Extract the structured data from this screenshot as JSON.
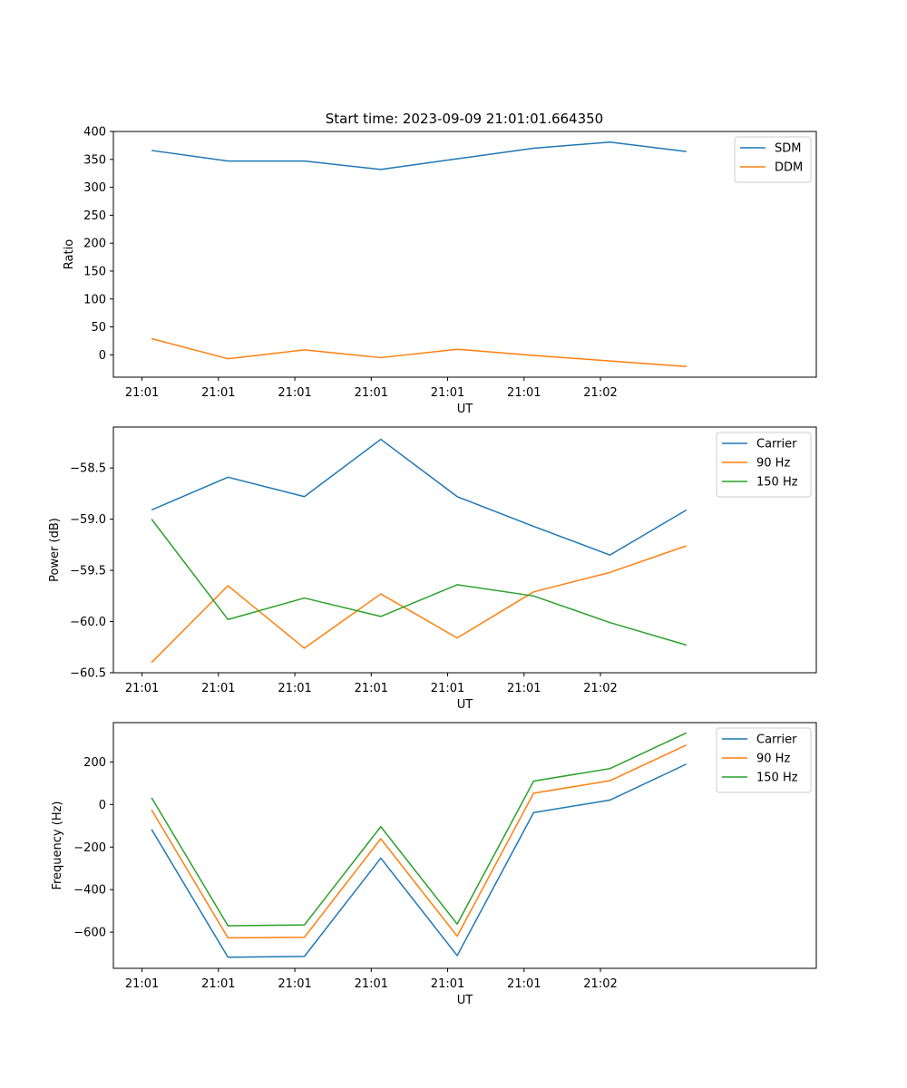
{
  "figure": {
    "title": "Start time: 2023-09-09 21:01:01.664350"
  },
  "chart_data": [
    {
      "type": "line",
      "title": "Start time: 2023-09-09 21:01:01.664350",
      "xlabel": "UT",
      "ylabel": "Ratio",
      "x_ticks": [
        "21:01",
        "21:01",
        "21:01",
        "21:01",
        "21:01",
        "21:01",
        "21:02"
      ],
      "xlim": [
        -0.5,
        8.7
      ],
      "x": [
        0,
        1,
        2,
        3,
        4,
        5,
        6,
        7
      ],
      "ylim": [
        -40,
        400
      ],
      "y_ticks": [
        0,
        50,
        100,
        150,
        200,
        250,
        300,
        350,
        400
      ],
      "y_tick_labels": [
        "0",
        "50",
        "100",
        "150",
        "200",
        "250",
        "300",
        "350",
        "400"
      ],
      "legend_position": "top-right",
      "series": [
        {
          "name": "SDM",
          "color": "#1f77b4",
          "values": [
            366,
            347,
            347,
            332,
            351,
            370,
            381,
            364
          ]
        },
        {
          "name": "DDM",
          "color": "#ff7f0e",
          "values": [
            29,
            -7,
            9,
            -5,
            10,
            -1,
            -11,
            -21
          ]
        }
      ]
    },
    {
      "type": "line",
      "title": "",
      "xlabel": "UT",
      "ylabel": "Power (dB)",
      "x_ticks": [
        "21:01",
        "21:01",
        "21:01",
        "21:01",
        "21:01",
        "21:01",
        "21:02"
      ],
      "xlim": [
        -0.5,
        8.7
      ],
      "x": [
        0,
        1,
        2,
        3,
        4,
        5,
        6,
        7
      ],
      "ylim": [
        -60.5,
        -58.1
      ],
      "y_ticks": [
        -60.5,
        -60.0,
        -59.5,
        -59.0,
        -58.5
      ],
      "y_tick_labels": [
        "−60.5",
        "−60.0",
        "−59.5",
        "−59.0",
        "−58.5"
      ],
      "legend_position": "top-right",
      "series": [
        {
          "name": "Carrier",
          "color": "#1f77b4",
          "values": [
            -58.91,
            -58.59,
            -58.78,
            -58.22,
            -58.78,
            -59.07,
            -59.35,
            -58.91
          ]
        },
        {
          "name": "90 Hz",
          "color": "#ff7f0e",
          "values": [
            -60.4,
            -59.65,
            -60.26,
            -59.73,
            -60.16,
            -59.71,
            -59.52,
            -59.26
          ]
        },
        {
          "name": "150 Hz",
          "color": "#2ca02c",
          "values": [
            -59.0,
            -59.98,
            -59.77,
            -59.95,
            -59.64,
            -59.75,
            -60.01,
            -60.23
          ]
        }
      ]
    },
    {
      "type": "line",
      "title": "",
      "xlabel": "UT",
      "ylabel": "Frequency (Hz)",
      "x_ticks": [
        "21:01",
        "21:01",
        "21:01",
        "21:01",
        "21:01",
        "21:01",
        "21:02"
      ],
      "xlim": [
        -0.5,
        8.7
      ],
      "x": [
        0,
        1,
        2,
        3,
        4,
        5,
        6,
        7
      ],
      "ylim": [
        -770,
        385
      ],
      "y_ticks": [
        -600,
        -400,
        -200,
        0,
        200
      ],
      "y_tick_labels": [
        "−600",
        "−400",
        "−200",
        "0",
        "200"
      ],
      "legend_position": "top-right",
      "series": [
        {
          "name": "Carrier",
          "color": "#1f77b4",
          "values": [
            -117,
            -718,
            -714,
            -252,
            -710,
            -38,
            21,
            190
          ]
        },
        {
          "name": "90 Hz",
          "color": "#ff7f0e",
          "values": [
            -25,
            -627,
            -624,
            -161,
            -619,
            53,
            112,
            280
          ]
        },
        {
          "name": "150 Hz",
          "color": "#2ca02c",
          "values": [
            32,
            -570,
            -566,
            -104,
            -562,
            110,
            169,
            337
          ]
        }
      ]
    }
  ]
}
